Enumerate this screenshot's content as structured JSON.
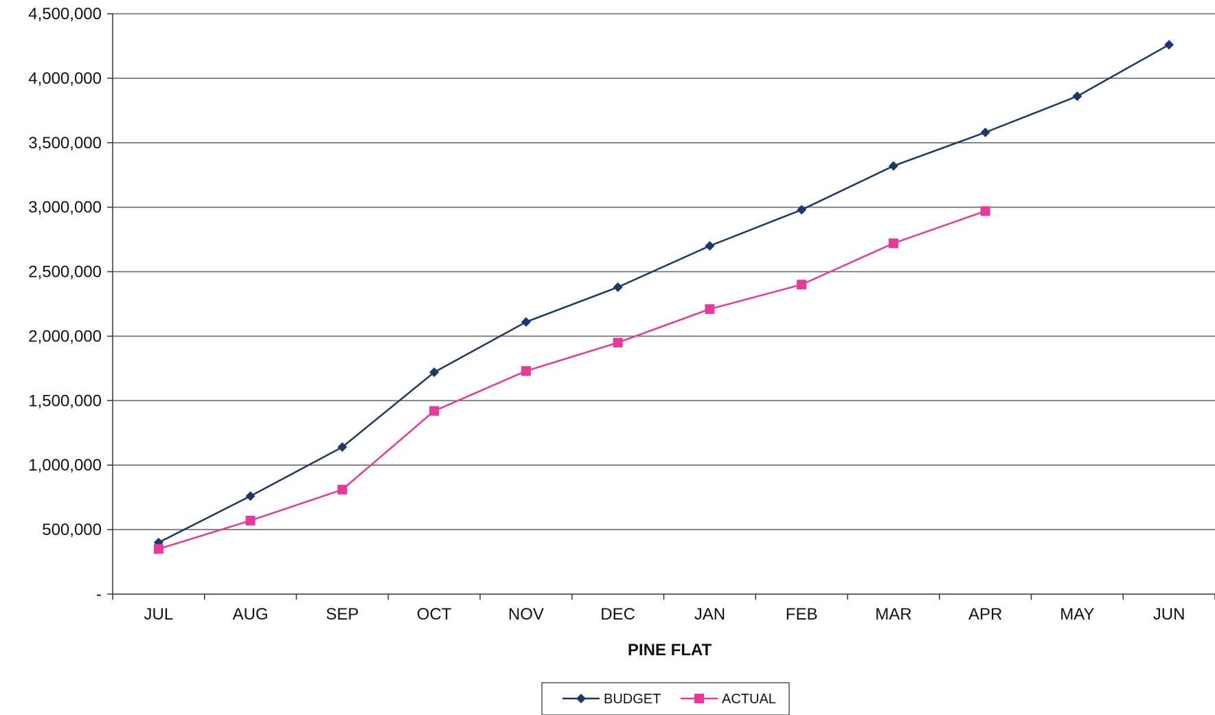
{
  "chart_data": {
    "type": "line",
    "categories": [
      "JUL",
      "AUG",
      "SEP",
      "OCT",
      "NOV",
      "DEC",
      "JAN",
      "FEB",
      "MAR",
      "APR",
      "MAY",
      "JUN"
    ],
    "xlabel": "PINE FLAT",
    "ylim": [
      0,
      4500000
    ],
    "yticks": [
      0,
      500000,
      1000000,
      1500000,
      2000000,
      2500000,
      3000000,
      3500000,
      4000000,
      4500000
    ],
    "ytick_labels": [
      "-",
      "500,000",
      "1,000,000",
      "1,500,000",
      "2,000,000",
      "2,500,000",
      "3,000,000",
      "3,500,000",
      "4,000,000",
      "4,500,000"
    ],
    "grid": true,
    "legend_position": "bottom-center",
    "series": [
      {
        "name": "BUDGET",
        "color": "#1b3868",
        "marker": "diamond",
        "values": [
          400000,
          760000,
          1140000,
          1720000,
          2110000,
          2380000,
          2700000,
          2980000,
          3320000,
          3580000,
          3860000,
          4260000
        ]
      },
      {
        "name": "ACTUAL",
        "color": "#e8389a",
        "marker": "square",
        "values": [
          350000,
          570000,
          810000,
          1420000,
          1730000,
          1950000,
          2210000,
          2400000,
          2720000,
          2970000,
          null,
          null
        ]
      }
    ]
  }
}
